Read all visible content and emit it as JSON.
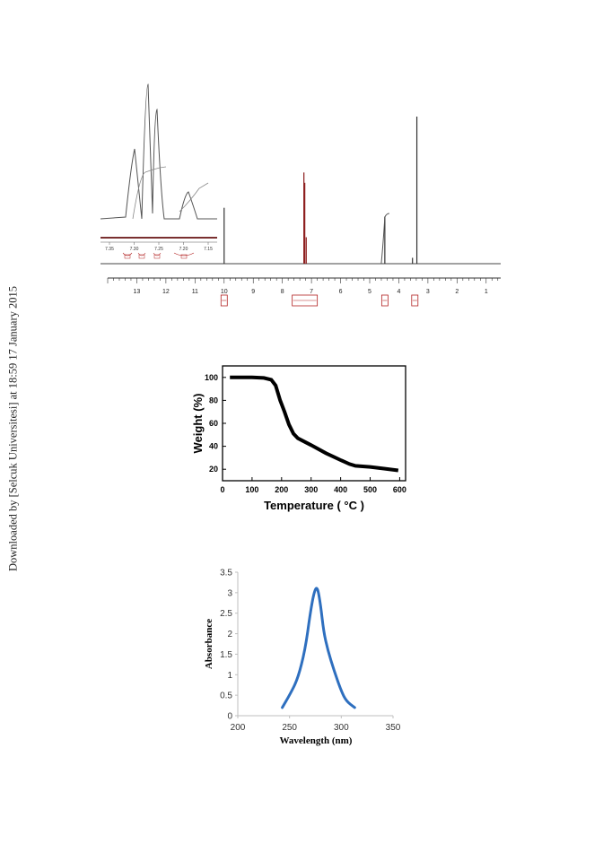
{
  "sidebar_note": "Downloaded by [Selcuk Universitesi] at 18:59 17 January 2015",
  "chart_data": [
    {
      "type": "line",
      "title": "",
      "xlabel": "",
      "ylabel": "",
      "x_ticks": [
        "13",
        "12",
        "11",
        "10",
        "9",
        "8",
        "7",
        "6",
        "5",
        "4",
        "3",
        "2",
        "1"
      ],
      "xlim": [
        14,
        0.5
      ],
      "peaks": [
        {
          "ppm": 10.0,
          "relative_height": 0.38
        },
        {
          "ppm": 7.26,
          "relative_height": 0.62
        },
        {
          "ppm": 7.23,
          "relative_height": 0.55
        },
        {
          "ppm": 7.18,
          "relative_height": 0.18
        },
        {
          "ppm": 4.48,
          "relative_height": 0.32
        },
        {
          "ppm": 3.53,
          "relative_height": 0.04
        },
        {
          "ppm": 3.38,
          "relative_height": 1.0
        }
      ],
      "inset_ticks": [
        "7.35",
        "7.30",
        "7.25",
        "7.20",
        "7.15"
      ]
    },
    {
      "type": "line",
      "title": "",
      "xlabel": "Temperature ( °C )",
      "ylabel": "Weight (%)",
      "xlim": [
        0,
        620
      ],
      "ylim": [
        10,
        110
      ],
      "x_ticks": [
        0,
        100,
        200,
        300,
        400,
        500,
        600
      ],
      "y_ticks": [
        20,
        40,
        60,
        80,
        100
      ],
      "series": [
        {
          "x": [
            25,
            100,
            140,
            165,
            180,
            195,
            210,
            225,
            240,
            255,
            270,
            300,
            350,
            400,
            430,
            450,
            500,
            550,
            595
          ],
          "y": [
            100,
            100,
            99.5,
            98,
            93,
            80,
            70,
            59,
            51,
            47,
            45,
            41,
            34,
            28,
            24.5,
            23,
            22,
            20.5,
            19
          ]
        }
      ]
    },
    {
      "type": "line",
      "title": "",
      "xlabel": "Wavelength (nm)",
      "ylabel": "Absorbance",
      "xlim": [
        200,
        350
      ],
      "ylim": [
        0,
        3.5
      ],
      "x_ticks": [
        200,
        250,
        300,
        350
      ],
      "y_ticks": [
        0,
        0.5,
        1,
        1.5,
        2,
        2.5,
        3,
        3.5
      ],
      "series": [
        {
          "color": "#2e6fbf",
          "x": [
            243,
            250,
            258,
            265,
            270,
            274,
            277,
            280,
            283,
            287,
            293,
            300,
            305,
            313
          ],
          "y": [
            0.2,
            0.5,
            0.9,
            1.6,
            2.5,
            3.05,
            3.15,
            2.7,
            2.05,
            1.6,
            1.1,
            0.6,
            0.35,
            0.2
          ]
        }
      ]
    }
  ]
}
